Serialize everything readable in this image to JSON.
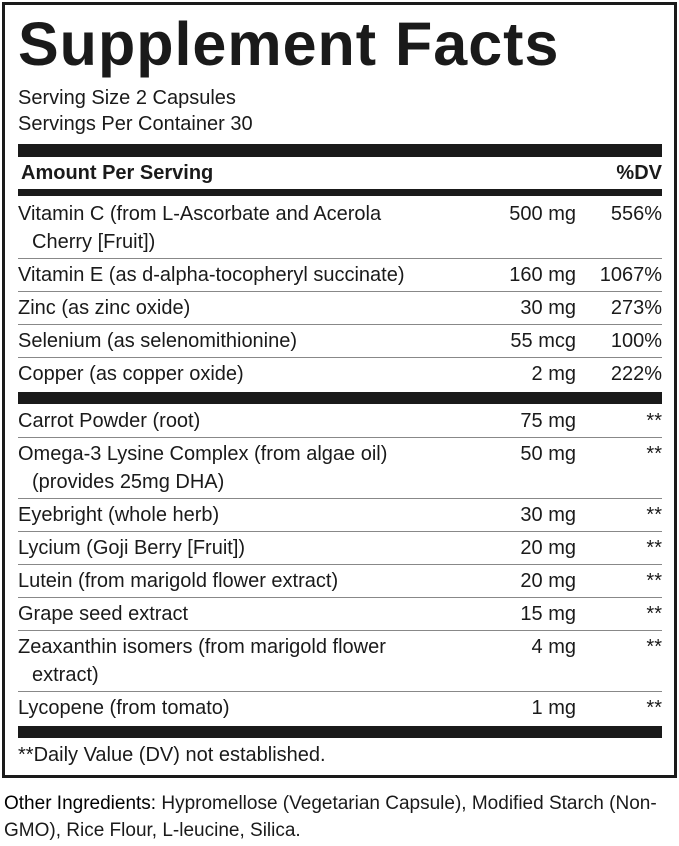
{
  "title": "Supplement Facts",
  "serving_size": "Serving Size 2 Capsules",
  "servings_per_container": "Servings Per Container 30",
  "header": {
    "amount": "Amount Per Serving",
    "dv": "%DV"
  },
  "vitamins": [
    {
      "name": "Vitamin C (from L-Ascorbate and Acerola",
      "name2": "Cherry [Fruit])",
      "amount": "500 mg",
      "dv": "556%"
    },
    {
      "name": "Vitamin E (as d-alpha-tocopheryl succinate)",
      "amount": "160 mg",
      "dv": "1067%"
    },
    {
      "name": "Zinc (as zinc oxide)",
      "amount": "30 mg",
      "dv": "273%"
    },
    {
      "name": "Selenium (as selenomithionine)",
      "amount": "55 mcg",
      "dv": "100%"
    },
    {
      "name": "Copper (as copper oxide)",
      "amount": "2 mg",
      "dv": "222%"
    }
  ],
  "others": [
    {
      "name": "Carrot Powder (root)",
      "amount": "75 mg",
      "dv": "**"
    },
    {
      "name": "Omega-3 Lysine Complex (from algae oil)",
      "name2": "(provides 25mg DHA)",
      "amount": "50 mg",
      "dv": "**"
    },
    {
      "name": "Eyebright (whole herb)",
      "amount": "30 mg",
      "dv": "**"
    },
    {
      "name": "Lycium (Goji Berry [Fruit])",
      "amount": "20 mg",
      "dv": "**"
    },
    {
      "name": "Lutein (from marigold flower extract)",
      "amount": "20 mg",
      "dv": "**"
    },
    {
      "name": "Grape seed extract",
      "amount": "15 mg",
      "dv": "**"
    },
    {
      "name": "Zeaxanthin isomers (from marigold flower",
      "name2": "extract)",
      "amount": "4 mg",
      "dv": "**"
    },
    {
      "name": "Lycopene (from tomato)",
      "amount": "1 mg",
      "dv": "**"
    }
  ],
  "footnote": "**Daily Value (DV) not established.",
  "other_ingredients": {
    "label": "Other Ingredients:",
    "text": " Hypromellose (Vegetarian Capsule), Modified Starch (Non-GMO), Rice Flour, L-leucine, Silica."
  }
}
